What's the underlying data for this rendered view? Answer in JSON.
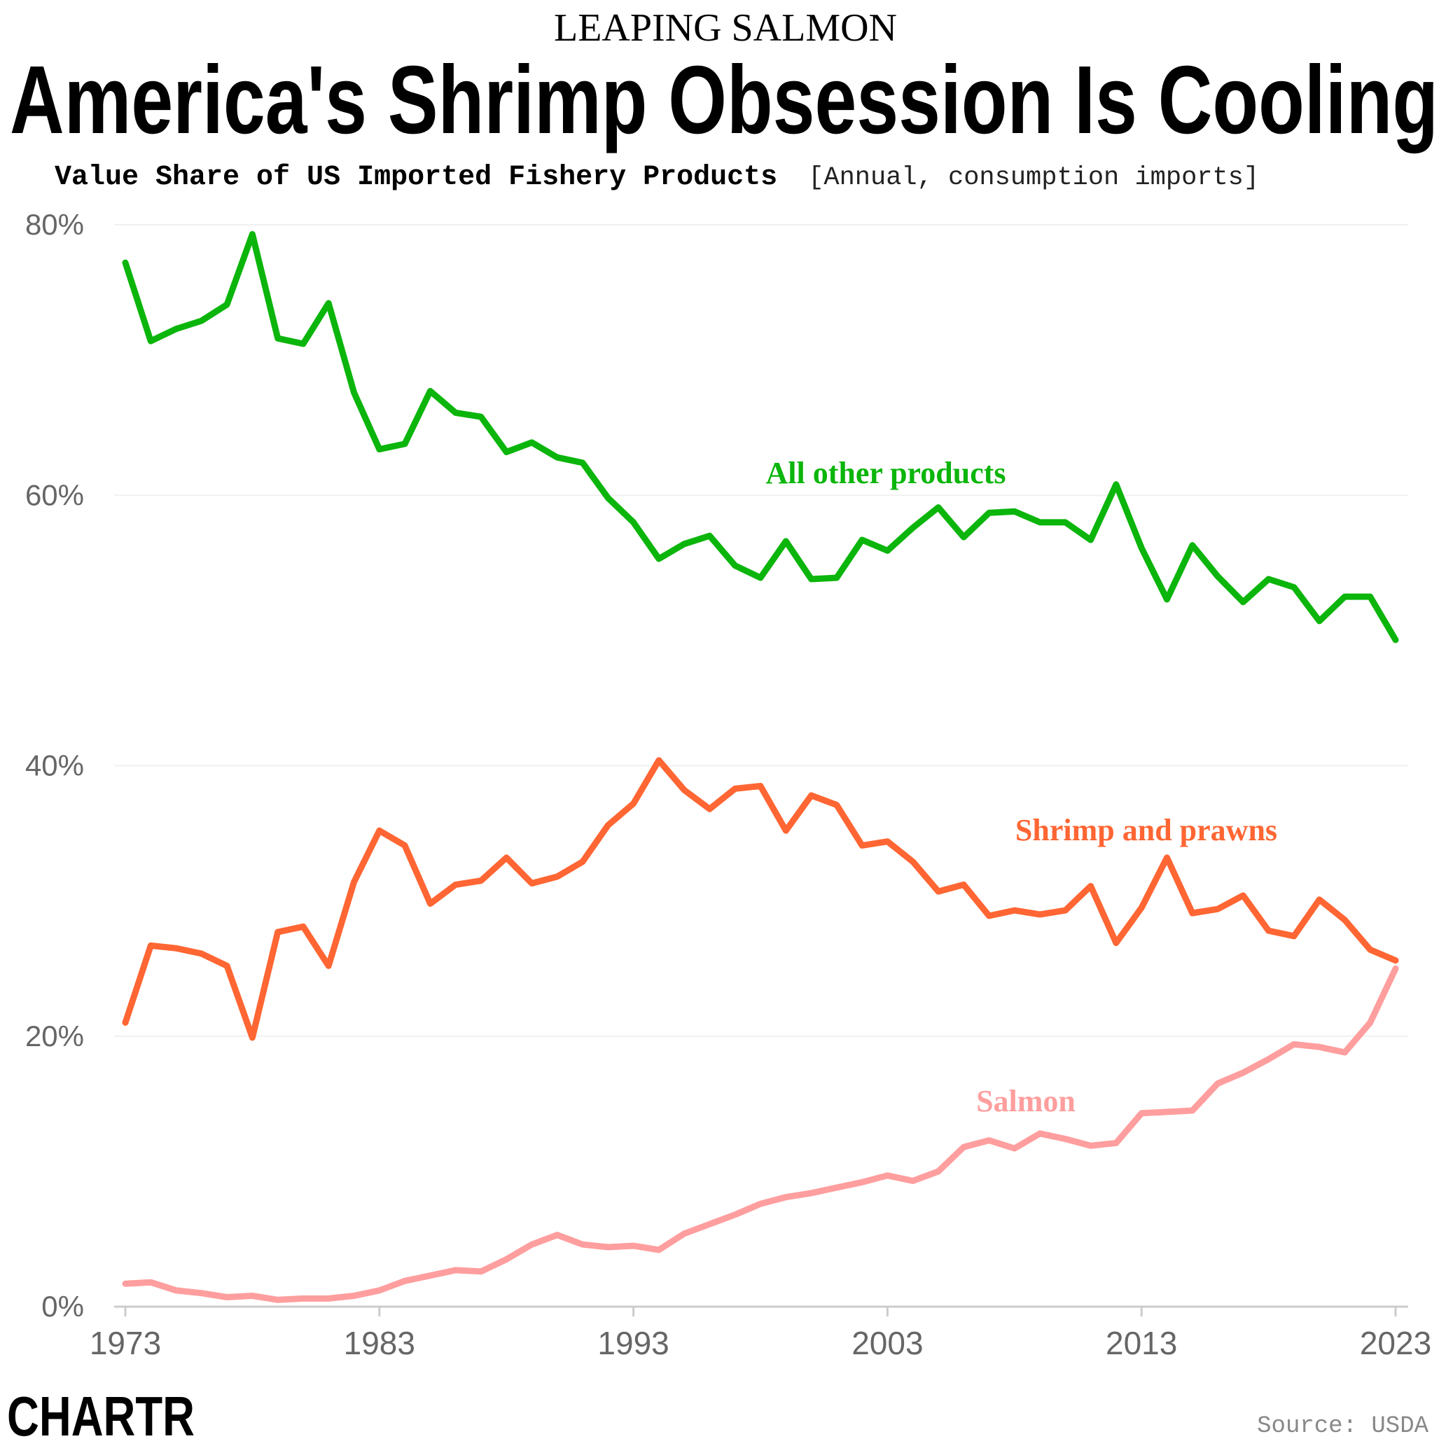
{
  "kicker": "LEAPING SALMON",
  "title": "America's Shrimp Obsession Is Cooling",
  "subtitle_bold": "Value Share of US Imported Fishery Products",
  "subtitle_note": "[Annual, consumption imports]",
  "source": "Source: USDA",
  "logo": "CHARTR",
  "chart_data": {
    "type": "line",
    "title": "Value Share of US Imported Fishery Products",
    "xlabel": "",
    "ylabel": "",
    "ylim": [
      0,
      80
    ],
    "xlim": [
      1973,
      2023
    ],
    "grid": true,
    "x_ticks": [
      "1973",
      "1983",
      "1993",
      "2003",
      "2013",
      "2023"
    ],
    "y_ticks": [
      "0%",
      "20%",
      "40%",
      "60%",
      "80%"
    ],
    "x": [
      1973,
      1974,
      1975,
      1976,
      1977,
      1978,
      1979,
      1980,
      1981,
      1982,
      1983,
      1984,
      1985,
      1986,
      1987,
      1988,
      1989,
      1990,
      1991,
      1992,
      1993,
      1994,
      1995,
      1996,
      1997,
      1998,
      1999,
      2000,
      2001,
      2002,
      2003,
      2004,
      2005,
      2006,
      2007,
      2008,
      2009,
      2010,
      2011,
      2012,
      2013,
      2014,
      2015,
      2016,
      2017,
      2018,
      2019,
      2020,
      2021,
      2022,
      2023
    ],
    "series": [
      {
        "name": "All other products",
        "color": "#0bb50b",
        "values": [
          77.2,
          71.4,
          72.3,
          72.9,
          74.1,
          79.3,
          71.6,
          71.2,
          74.2,
          67.6,
          63.4,
          63.8,
          67.7,
          66.1,
          65.8,
          63.2,
          63.9,
          62.8,
          62.4,
          59.8,
          58.0,
          55.3,
          56.4,
          57.0,
          54.8,
          53.9,
          56.6,
          53.8,
          53.9,
          56.7,
          55.9,
          57.6,
          59.1,
          56.9,
          58.7,
          58.8,
          58.0,
          58.0,
          56.7,
          60.8,
          56.1,
          52.3,
          56.3,
          54.0,
          52.1,
          53.8,
          53.2,
          50.7,
          52.5,
          52.5,
          49.3
        ]
      },
      {
        "name": "Shrimp and prawns",
        "color": "#ff6633",
        "values": [
          21.0,
          26.7,
          26.5,
          26.1,
          25.2,
          19.9,
          27.7,
          28.1,
          25.2,
          31.4,
          35.2,
          34.1,
          29.8,
          31.2,
          31.5,
          33.2,
          31.3,
          31.8,
          32.9,
          35.6,
          37.2,
          40.4,
          38.2,
          36.8,
          38.3,
          38.5,
          35.2,
          37.8,
          37.1,
          34.1,
          34.4,
          32.9,
          30.7,
          31.2,
          28.9,
          29.3,
          29.0,
          29.3,
          31.1,
          26.9,
          29.5,
          33.2,
          29.1,
          29.4,
          30.4,
          27.8,
          27.4,
          30.1,
          28.6,
          26.4,
          25.6
        ]
      },
      {
        "name": "Salmon",
        "color": "#ff9e9e",
        "values": [
          1.7,
          1.8,
          1.2,
          1.0,
          0.7,
          0.8,
          0.5,
          0.6,
          0.6,
          0.8,
          1.2,
          1.9,
          2.3,
          2.7,
          2.6,
          3.5,
          4.6,
          5.3,
          4.6,
          4.4,
          4.5,
          4.2,
          5.4,
          6.1,
          6.8,
          7.6,
          8.1,
          8.4,
          8.8,
          9.2,
          9.7,
          9.3,
          10.0,
          11.8,
          12.3,
          11.7,
          12.8,
          12.4,
          11.9,
          12.1,
          14.3,
          14.4,
          14.5,
          16.5,
          17.3,
          18.3,
          19.4,
          19.2,
          18.8,
          21.0,
          25.0
        ]
      }
    ]
  }
}
